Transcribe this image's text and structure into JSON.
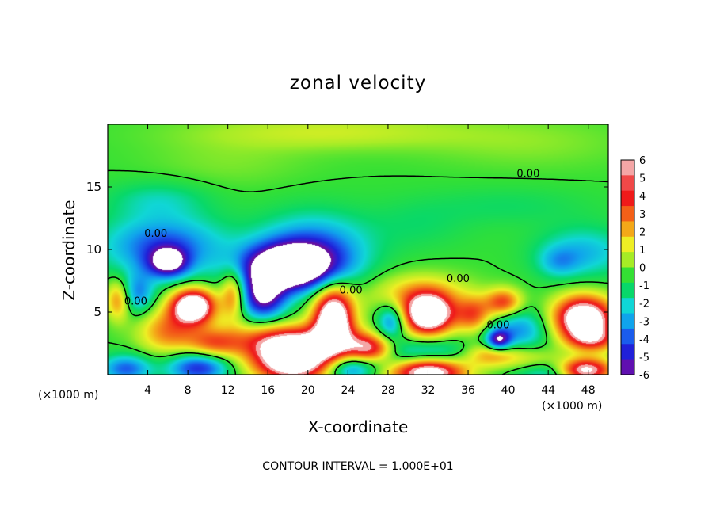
{
  "chart_data": {
    "type": "heatmap",
    "title": "zonal velocity",
    "xlabel": "X-coordinate",
    "ylabel": "Z-coordinate",
    "x_unit_left": "(×1000 m)",
    "x_unit_right": "(×1000 m)",
    "footer": "CONTOUR INTERVAL = 1.000E+01",
    "xlim": [
      0,
      50
    ],
    "ylim": [
      0,
      20
    ],
    "x_ticks": [
      4,
      8,
      12,
      16,
      20,
      24,
      28,
      32,
      36,
      40,
      44,
      48
    ],
    "y_ticks": [
      5,
      10,
      15
    ],
    "colorbar_ticks": [
      6,
      5,
      4,
      3,
      2,
      1,
      0,
      -1,
      -2,
      -3,
      -4,
      -5,
      -6
    ],
    "colorbar_colors": [
      "#f4a6a6",
      "#f04848",
      "#ef1a1a",
      "#f36018",
      "#f4a818",
      "#eeee24",
      "#a6ec26",
      "#34e034",
      "#08d86a",
      "#10d6d6",
      "#10a4ec",
      "#1a5cec",
      "#2020d8",
      "#6010b0"
    ],
    "contour_label": "0.00",
    "contour_labels": [
      {
        "x": 4.8,
        "y": 11.0,
        "text": "0.00"
      },
      {
        "x": 2.8,
        "y": 5.6,
        "text": "0.00"
      },
      {
        "x": 24.3,
        "y": 6.5,
        "text": "0.00"
      },
      {
        "x": 35.0,
        "y": 7.4,
        "text": "0.00"
      },
      {
        "x": 39.0,
        "y": 3.7,
        "text": "0.00"
      },
      {
        "x": 42.0,
        "y": 15.8,
        "text": "0.00"
      }
    ],
    "blobs": [
      {
        "x": 5.5,
        "y": 10.3,
        "rx": 6.0,
        "ry": 2.4,
        "v": -4.2
      },
      {
        "x": 6.0,
        "y": 9.0,
        "rx": 2.0,
        "ry": 1.2,
        "v": -5.5
      },
      {
        "x": 3.0,
        "y": 6.5,
        "rx": 1.6,
        "ry": 1.6,
        "v": -3.2
      },
      {
        "x": 18.0,
        "y": 8.6,
        "rx": 4.5,
        "ry": 1.8,
        "v": -9.0
      },
      {
        "x": 20.5,
        "y": 10.0,
        "rx": 5.5,
        "ry": 2.8,
        "v": -4.0
      },
      {
        "x": 15.5,
        "y": 6.2,
        "rx": 2.2,
        "ry": 1.8,
        "v": -6.0
      },
      {
        "x": 8.5,
        "y": 5.5,
        "rx": 2.2,
        "ry": 1.4,
        "v": 9.0
      },
      {
        "x": 6.0,
        "y": 3.5,
        "rx": 3.0,
        "ry": 1.8,
        "v": 3.5
      },
      {
        "x": 1.0,
        "y": 6.0,
        "rx": 1.2,
        "ry": 1.6,
        "v": 3.5
      },
      {
        "x": 12.5,
        "y": 6.5,
        "rx": 1.2,
        "ry": 2.0,
        "v": 4.0
      },
      {
        "x": 10.5,
        "y": 2.5,
        "rx": 2.5,
        "ry": 1.2,
        "v": 3.0
      },
      {
        "x": 9.0,
        "y": 0.6,
        "rx": 3.0,
        "ry": 1.2,
        "v": -5.0
      },
      {
        "x": 1.8,
        "y": 0.5,
        "rx": 2.5,
        "ry": 1.1,
        "v": -4.0
      },
      {
        "x": 18.5,
        "y": 1.2,
        "rx": 4.0,
        "ry": 1.8,
        "v": 9.0
      },
      {
        "x": 17.5,
        "y": 2.8,
        "rx": 6.5,
        "ry": 1.4,
        "v": 4.0
      },
      {
        "x": 22.5,
        "y": 4.5,
        "rx": 2.0,
        "ry": 2.6,
        "v": 9.0
      },
      {
        "x": 25.5,
        "y": 2.2,
        "rx": 2.0,
        "ry": 1.2,
        "v": 4.0
      },
      {
        "x": 24.0,
        "y": 0.5,
        "rx": 2.5,
        "ry": 1.0,
        "v": -4.0
      },
      {
        "x": 28.3,
        "y": 4.3,
        "rx": 1.4,
        "ry": 1.4,
        "v": -3.8
      },
      {
        "x": 32.0,
        "y": 4.8,
        "rx": 2.5,
        "ry": 1.6,
        "v": 9.0
      },
      {
        "x": 31.0,
        "y": 6.5,
        "rx": 5.0,
        "ry": 1.6,
        "v": 2.8
      },
      {
        "x": 32.0,
        "y": 0.4,
        "rx": 3.8,
        "ry": 1.3,
        "v": 9.0
      },
      {
        "x": 32.0,
        "y": 1.5,
        "rx": 5.5,
        "ry": 1.2,
        "v": -4.5
      },
      {
        "x": 27.0,
        "y": 2.0,
        "rx": 2.0,
        "ry": 1.0,
        "v": 3.0
      },
      {
        "x": 36.5,
        "y": 4.8,
        "rx": 1.8,
        "ry": 1.4,
        "v": 4.0
      },
      {
        "x": 39.5,
        "y": 5.8,
        "rx": 1.8,
        "ry": 1.1,
        "v": 4.5
      },
      {
        "x": 41.0,
        "y": 3.6,
        "rx": 3.0,
        "ry": 1.6,
        "v": -3.2
      },
      {
        "x": 39.0,
        "y": 2.8,
        "rx": 1.2,
        "ry": 0.8,
        "v": -5.5
      },
      {
        "x": 38.0,
        "y": 1.6,
        "rx": 3.0,
        "ry": 1.0,
        "v": 4.0
      },
      {
        "x": 43.0,
        "y": 1.2,
        "rx": 3.5,
        "ry": 1.0,
        "v": 3.0
      },
      {
        "x": 45.0,
        "y": 0.5,
        "rx": 4.0,
        "ry": 1.3,
        "v": -4.2
      },
      {
        "x": 47.5,
        "y": 0.4,
        "rx": 2.8,
        "ry": 1.0,
        "v": 9.0
      },
      {
        "x": 47.5,
        "y": 4.5,
        "rx": 3.0,
        "ry": 1.8,
        "v": 9.0
      },
      {
        "x": 48.5,
        "y": 2.8,
        "rx": 2.5,
        "ry": 1.0,
        "v": 3.5
      },
      {
        "x": 47.5,
        "y": 9.8,
        "rx": 4.5,
        "ry": 2.0,
        "v": -2.6
      },
      {
        "x": 45.0,
        "y": 9.0,
        "rx": 2.0,
        "ry": 1.2,
        "v": -1.8
      },
      {
        "x": 22.0,
        "y": 19.4,
        "rx": 14.0,
        "ry": 1.4,
        "v": 1.5
      },
      {
        "x": 12.0,
        "y": 17.0,
        "rx": 8.0,
        "ry": 2.0,
        "v": 0.6
      },
      {
        "x": 42.0,
        "y": 18.5,
        "rx": 10.0,
        "ry": 2.0,
        "v": 0.7
      },
      {
        "x": 5.0,
        "y": 14.0,
        "rx": 5.0,
        "ry": 1.5,
        "v": -1.5
      },
      {
        "x": 40.0,
        "y": 13.5,
        "rx": 8.0,
        "ry": 1.5,
        "v": -0.8
      },
      {
        "x": 31.0,
        "y": 12.0,
        "rx": 5.0,
        "ry": 2.0,
        "v": -0.8
      }
    ]
  }
}
